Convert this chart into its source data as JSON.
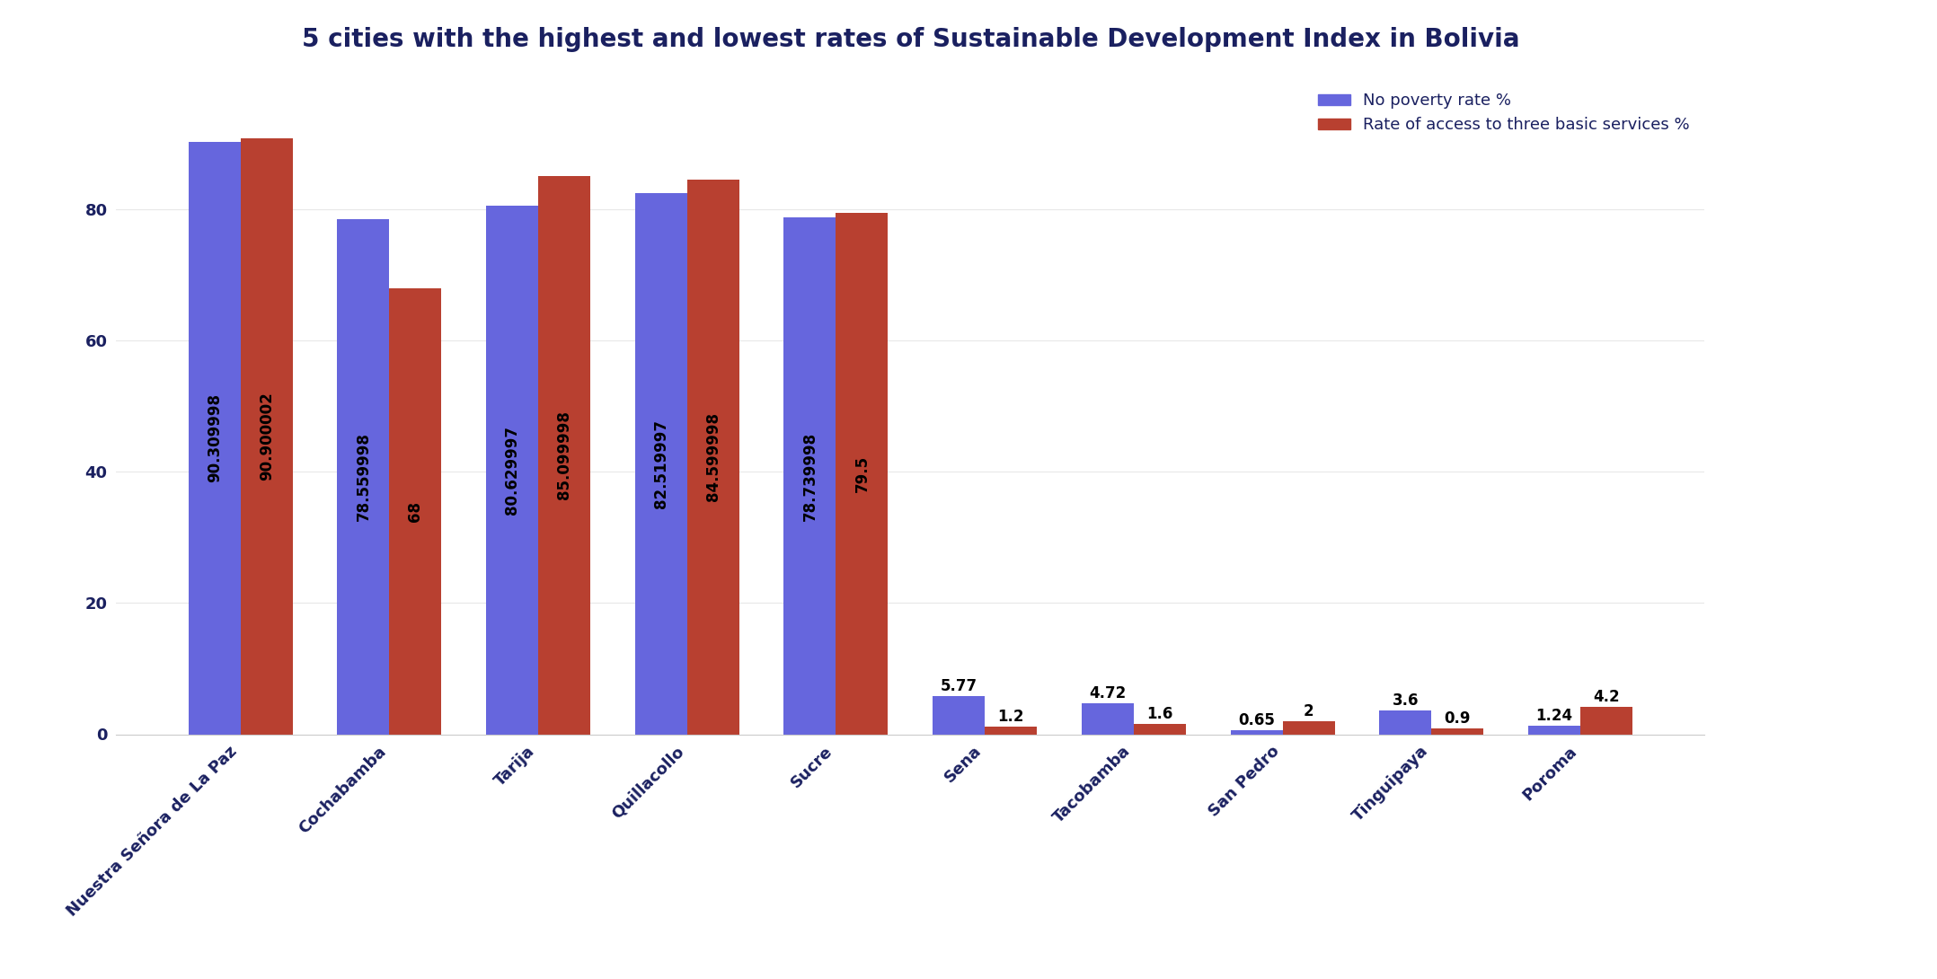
{
  "title": "5 cities with the highest and lowest rates of Sustainable Development Index in Bolivia",
  "categories": [
    "Nuestra Señora de La Paz",
    "Cochabamba",
    "Tarija",
    "Quillacollo",
    "Sucre",
    "Sena",
    "Tacobamba",
    "San Pedro",
    "Tinguipaya",
    "Poroma"
  ],
  "no_poverty": [
    90.309998,
    78.559998,
    80.629997,
    82.519997,
    78.739998,
    5.77,
    4.72,
    0.65,
    3.6,
    1.24
  ],
  "basic_services": [
    90.900002,
    68,
    85.099998,
    84.599998,
    79.5,
    1.2,
    1.6,
    2,
    0.9,
    4.2
  ],
  "bar_color_blue": "#6666dd",
  "bar_color_red": "#b84030",
  "title_color": "#1a2060",
  "tick_color": "#1a2060",
  "title_fontsize": 20,
  "label_fontsize": 13,
  "bar_label_fontsize": 12,
  "bar_width": 0.35,
  "legend_labels": [
    "No poverty rate %",
    "Rate of access to three basic services %"
  ],
  "background_color": "#ffffff",
  "ylim": [
    0,
    100
  ],
  "yticks": [
    0,
    20,
    40,
    60,
    80
  ],
  "inside_label_threshold": 10
}
